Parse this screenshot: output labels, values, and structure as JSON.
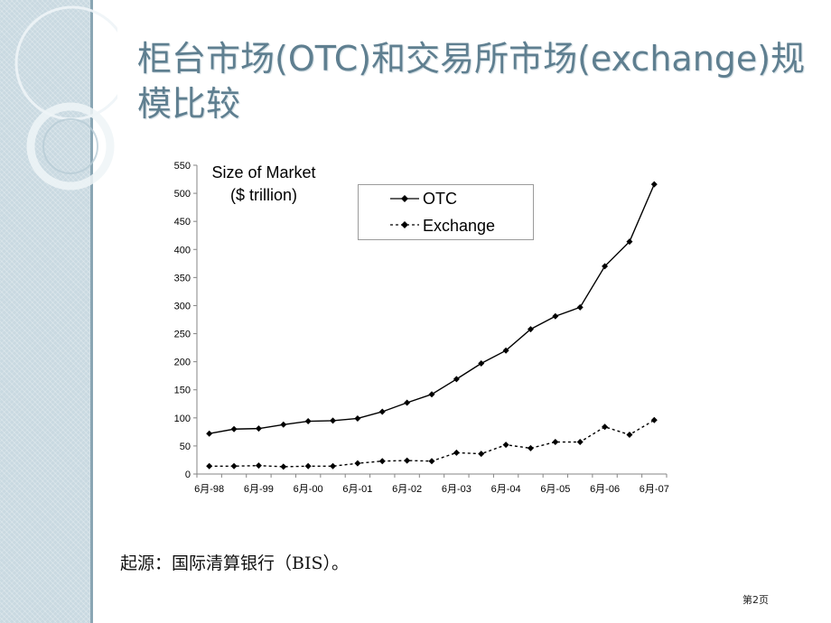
{
  "slide": {
    "title": "柜台市场(OTC)和交易所市场(exchange)规模比较",
    "source_note": "起源：国际清算银行（BIS）。",
    "page_number": "第2页"
  },
  "colors": {
    "title": "#5f7f90",
    "sidebar": "#c9d9e1"
  },
  "chart_data": {
    "type": "line",
    "title": "",
    "ylabel_line1": "Size of Market",
    "ylabel_line2": "($ trillion)",
    "xlabel": "",
    "ylim": [
      0,
      550
    ],
    "yticks": [
      0,
      50,
      100,
      150,
      200,
      250,
      300,
      350,
      400,
      450,
      500,
      550
    ],
    "xtick_labels": [
      "6月-98",
      "6月-99",
      "6月-00",
      "6月-01",
      "6月-02",
      "6月-03",
      "6月-04",
      "6月-05",
      "6月-06",
      "6月-07"
    ],
    "x": [
      "6月-98",
      "12月-98",
      "6月-99",
      "12月-99",
      "6月-00",
      "12月-00",
      "6月-01",
      "12月-01",
      "6月-02",
      "12月-02",
      "6月-03",
      "12月-03",
      "6月-04",
      "12月-04",
      "6月-05",
      "12月-05",
      "6月-06",
      "12月-06",
      "6月-07"
    ],
    "series": [
      {
        "name": "OTC",
        "style": "solid",
        "values": [
          72,
          80,
          81,
          88,
          94,
          95,
          99,
          111,
          127,
          142,
          169,
          197,
          220,
          258,
          281,
          297,
          370,
          414,
          516
        ]
      },
      {
        "name": "Exchange",
        "style": "dashed",
        "values": [
          14,
          14,
          15,
          13,
          14,
          14,
          19,
          23,
          24,
          23,
          38,
          36,
          52,
          46,
          57,
          57,
          84,
          70,
          96
        ]
      }
    ],
    "legend_position": "top-right",
    "grid": false
  }
}
